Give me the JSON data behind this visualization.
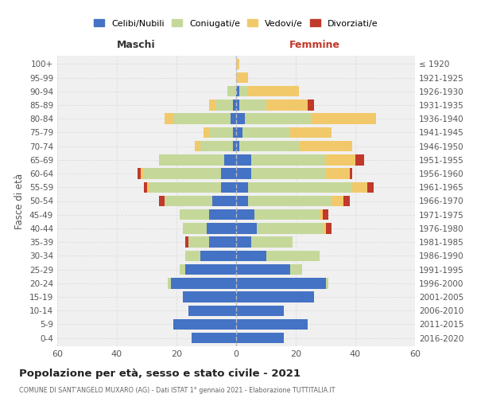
{
  "age_groups": [
    "0-4",
    "5-9",
    "10-14",
    "15-19",
    "20-24",
    "25-29",
    "30-34",
    "35-39",
    "40-44",
    "45-49",
    "50-54",
    "55-59",
    "60-64",
    "65-69",
    "70-74",
    "75-79",
    "80-84",
    "85-89",
    "90-94",
    "95-99",
    "100+"
  ],
  "birth_years": [
    "2016-2020",
    "2011-2015",
    "2006-2010",
    "2001-2005",
    "1996-2000",
    "1991-1995",
    "1986-1990",
    "1981-1985",
    "1976-1980",
    "1971-1975",
    "1966-1970",
    "1961-1965",
    "1956-1960",
    "1951-1955",
    "1946-1950",
    "1941-1945",
    "1936-1940",
    "1931-1935",
    "1926-1930",
    "1921-1925",
    "≤ 1920"
  ],
  "colors": {
    "celibi": "#4472C4",
    "coniugati": "#C5D89A",
    "vedovi": "#F2C96A",
    "divorziati": "#C0392B"
  },
  "maschi": {
    "celibi": [
      15,
      21,
      16,
      18,
      22,
      17,
      12,
      9,
      10,
      9,
      8,
      5,
      5,
      4,
      1,
      1,
      2,
      1,
      0,
      0,
      0
    ],
    "coniugati": [
      0,
      0,
      0,
      0,
      1,
      2,
      5,
      7,
      8,
      10,
      16,
      24,
      26,
      22,
      11,
      8,
      19,
      6,
      3,
      0,
      0
    ],
    "vedovi": [
      0,
      0,
      0,
      0,
      0,
      0,
      0,
      0,
      0,
      0,
      0,
      1,
      1,
      0,
      2,
      2,
      3,
      2,
      0,
      0,
      0
    ],
    "divorziati": [
      0,
      0,
      0,
      0,
      0,
      0,
      0,
      1,
      0,
      0,
      2,
      1,
      1,
      0,
      0,
      0,
      0,
      0,
      0,
      0,
      0
    ]
  },
  "femmine": {
    "celibi": [
      16,
      24,
      16,
      26,
      30,
      18,
      10,
      5,
      7,
      6,
      4,
      4,
      5,
      5,
      1,
      2,
      3,
      1,
      1,
      0,
      0
    ],
    "coniugati": [
      0,
      0,
      0,
      0,
      1,
      4,
      18,
      14,
      22,
      22,
      28,
      35,
      25,
      25,
      20,
      16,
      22,
      9,
      3,
      0,
      0
    ],
    "vedovi": [
      0,
      0,
      0,
      0,
      0,
      0,
      0,
      0,
      1,
      1,
      4,
      5,
      8,
      10,
      18,
      14,
      22,
      14,
      17,
      4,
      1
    ],
    "divorziati": [
      0,
      0,
      0,
      0,
      0,
      0,
      0,
      0,
      2,
      2,
      2,
      2,
      1,
      3,
      0,
      0,
      0,
      2,
      0,
      0,
      0
    ]
  },
  "xlim": 60,
  "title": "Popolazione per età, sesso e stato civile - 2021",
  "subtitle": "COMUNE DI SANT'ANGELO MUXARO (AG) - Dati ISTAT 1° gennaio 2021 - Elaborazione TUTTITALIA.IT",
  "ylabel_left": "Fasce di età",
  "xlabel_maschi": "Maschi",
  "xlabel_femmine": "Femmine",
  "legend_labels": [
    "Celibi/Nubili",
    "Coniugati/e",
    "Vedovi/e",
    "Divorziati/e"
  ],
  "bg_color": "#FFFFFF",
  "plot_bg": "#F0F0F0",
  "grid_color": "#DDDDDD"
}
